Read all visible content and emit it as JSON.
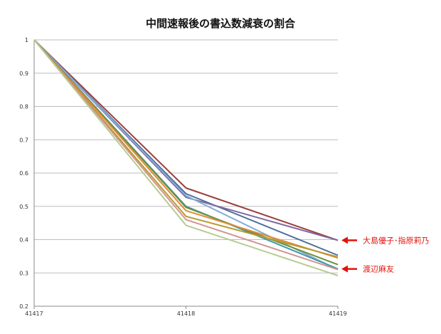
{
  "chart_data": {
    "type": "line",
    "title": "中間速報後の書込数減衰の割合",
    "xlabel": "",
    "ylabel": "",
    "x": [
      "41417",
      "41418",
      "41419"
    ],
    "ylim": [
      0.2,
      1.0
    ],
    "yticks": [
      "1",
      "0.9",
      "0.8",
      "0.7",
      "0.6",
      "0.5",
      "0.4",
      "0.3",
      "0.2"
    ],
    "grid": true,
    "legend": "none",
    "series": [
      {
        "color": "#9b3f3c",
        "values": [
          1.0,
          0.555,
          0.398
        ]
      },
      {
        "color": "#4a6f9a",
        "values": [
          1.0,
          0.538,
          0.353
        ]
      },
      {
        "color": "#7b6aa0",
        "values": [
          1.0,
          0.527,
          0.398
        ]
      },
      {
        "color": "#8aabd6",
        "values": [
          1.0,
          0.532,
          0.31
        ]
      },
      {
        "color": "#3a9aa8",
        "values": [
          1.0,
          0.5,
          0.312
        ]
      },
      {
        "color": "#6f8f3a",
        "values": [
          1.0,
          0.497,
          0.325
        ]
      },
      {
        "color": "#e08a3a",
        "values": [
          1.0,
          0.487,
          0.345
        ]
      },
      {
        "color": "#b89a2e",
        "values": [
          1.0,
          0.47,
          0.348
        ]
      },
      {
        "color": "#d49494",
        "values": [
          1.0,
          0.46,
          0.31
        ]
      },
      {
        "color": "#b5cc8e",
        "values": [
          1.0,
          0.443,
          0.292
        ]
      }
    ],
    "annotations": [
      {
        "text": "大島優子･指原莉乃",
        "value": 0.398,
        "color": "#e3120b"
      },
      {
        "text": "渡辺麻友",
        "value": 0.312,
        "color": "#e3120b"
      }
    ]
  }
}
